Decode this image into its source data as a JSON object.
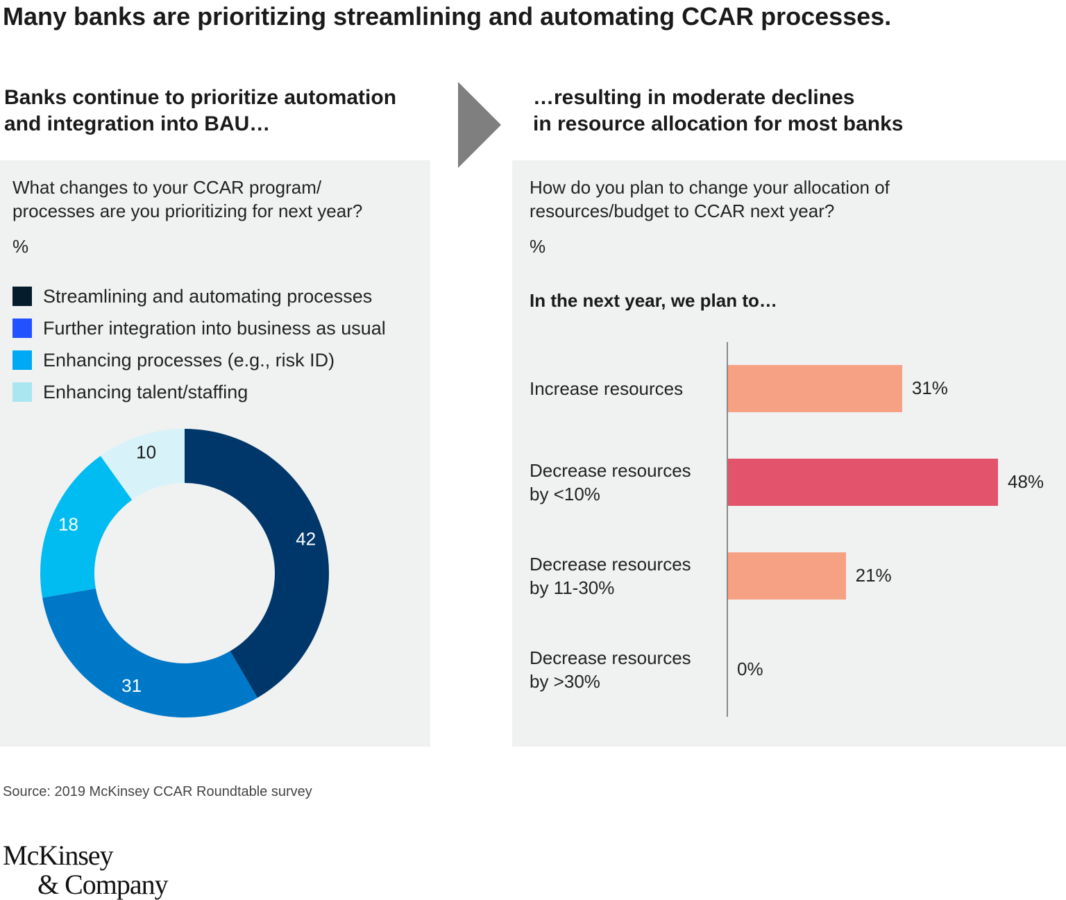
{
  "title": "Many banks are prioritizing streamlining and automating CCAR processes.",
  "left": {
    "subtitle": [
      "Banks continue to prioritize automation",
      "and integration into BAU…"
    ],
    "question": [
      "What changes to your CCAR program/",
      "processes are you prioritizing for next year?"
    ],
    "unit": "%"
  },
  "right": {
    "subtitle": [
      "…resulting in moderate declines",
      "in resource allocation for most banks"
    ],
    "question": [
      "How do you plan to change your allocation of",
      "resources/budget to CCAR next year?"
    ],
    "unit": "%",
    "intro": "In the next year, we plan to…"
  },
  "colors": {
    "panel_bg": "#f0f1f1",
    "arrow": "#7f7f7f",
    "axis": "#888888"
  },
  "chart_data": [
    {
      "type": "pie",
      "variant": "donut",
      "categories": [
        "Streamlining and automating processes",
        "Further integration into business as usual",
        "Enhancing processes (e.g., risk ID)",
        "Enhancing talent/staffing"
      ],
      "values": [
        42,
        31,
        18,
        10
      ],
      "value_labels": [
        "42",
        "31",
        "18",
        "10"
      ],
      "legend_colors": [
        "#051c2c",
        "#2251ff",
        "#00a9f4",
        "#aae6f0"
      ],
      "slice_colors": [
        "#00376b",
        "#0078c8",
        "#00bcf0",
        "#d7f3f9"
      ],
      "label_colors": [
        "#ffffff",
        "#ffffff",
        "#ffffff",
        "#1a1a1a"
      ],
      "legend_position": "top"
    },
    {
      "type": "bar",
      "orientation": "horizontal",
      "categories": [
        [
          "Increase resources"
        ],
        [
          "Decrease resources",
          "by <10%"
        ],
        [
          "Decrease resources",
          "by 11-30%"
        ],
        [
          "Decrease resources",
          "by >30%"
        ]
      ],
      "values": [
        31,
        48,
        21,
        0
      ],
      "value_labels": [
        "31%",
        "48%",
        "21%",
        "0%"
      ],
      "colors": [
        "#f7a184",
        "#e3536b",
        "#f7a184",
        "#f7a184"
      ],
      "xlim": [
        0,
        48
      ]
    }
  ],
  "source": "Source: 2019 McKinsey CCAR Roundtable survey",
  "logo": [
    "McKinsey",
    "& Company"
  ]
}
